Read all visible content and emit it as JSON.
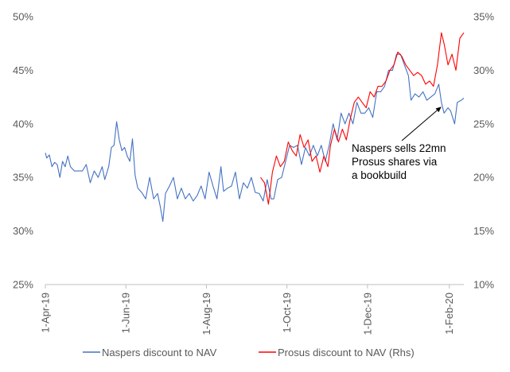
{
  "chart_data": {
    "type": "line",
    "title": "",
    "xlabel": "",
    "ylabel": "",
    "x_ticks": [
      "1-Apr-19",
      "1-Jun-19",
      "1-Aug-19",
      "1-Oct-19",
      "1-Dec-19",
      "1-Feb-20"
    ],
    "x_range": [
      "2019-04-01",
      "2020-02-12"
    ],
    "y_left": {
      "range": [
        25,
        50
      ],
      "ticks": [
        "25%",
        "30%",
        "35%",
        "40%",
        "45%",
        "50%"
      ]
    },
    "y_right": {
      "range": [
        10,
        35
      ],
      "ticks": [
        "10%",
        "15%",
        "20%",
        "25%",
        "30%",
        "35%"
      ]
    },
    "grid": false,
    "legend": {
      "placement": "bottom"
    },
    "series": [
      {
        "name": "Naspers discount to NAV",
        "color": "#4472C4",
        "axis": "left",
        "points": [
          [
            "2019-04-01",
            37.3
          ],
          [
            "2019-04-02",
            36.8
          ],
          [
            "2019-04-04",
            37.1
          ],
          [
            "2019-04-06",
            36.0
          ],
          [
            "2019-04-08",
            36.4
          ],
          [
            "2019-04-10",
            36.2
          ],
          [
            "2019-04-12",
            35.0
          ],
          [
            "2019-04-14",
            36.5
          ],
          [
            "2019-04-16",
            36.0
          ],
          [
            "2019-04-18",
            37.0
          ],
          [
            "2019-04-20",
            36.0
          ],
          [
            "2019-04-23",
            35.6
          ],
          [
            "2019-04-26",
            35.6
          ],
          [
            "2019-04-29",
            35.6
          ],
          [
            "2019-05-02",
            36.2
          ],
          [
            "2019-05-05",
            34.5
          ],
          [
            "2019-05-08",
            35.6
          ],
          [
            "2019-05-11",
            35.0
          ],
          [
            "2019-05-14",
            36.0
          ],
          [
            "2019-05-16",
            34.8
          ],
          [
            "2019-05-19",
            36.0
          ],
          [
            "2019-05-21",
            37.8
          ],
          [
            "2019-05-23",
            38.0
          ],
          [
            "2019-05-25",
            40.2
          ],
          [
            "2019-05-27",
            38.5
          ],
          [
            "2019-05-29",
            37.5
          ],
          [
            "2019-05-31",
            37.8
          ],
          [
            "2019-06-02",
            37.0
          ],
          [
            "2019-06-04",
            36.5
          ],
          [
            "2019-06-06",
            38.6
          ],
          [
            "2019-06-08",
            35.2
          ],
          [
            "2019-06-10",
            34.0
          ],
          [
            "2019-06-13",
            33.6
          ],
          [
            "2019-06-16",
            33.0
          ],
          [
            "2019-06-19",
            35.0
          ],
          [
            "2019-06-22",
            33.0
          ],
          [
            "2019-06-25",
            33.5
          ],
          [
            "2019-06-27",
            32.3
          ],
          [
            "2019-06-29",
            30.9
          ],
          [
            "2019-07-01",
            33.5
          ],
          [
            "2019-07-04",
            34.2
          ],
          [
            "2019-07-07",
            35.0
          ],
          [
            "2019-07-10",
            33.0
          ],
          [
            "2019-07-13",
            34.0
          ],
          [
            "2019-07-16",
            33.0
          ],
          [
            "2019-07-19",
            33.5
          ],
          [
            "2019-07-22",
            32.8
          ],
          [
            "2019-07-25",
            33.3
          ],
          [
            "2019-07-28",
            34.2
          ],
          [
            "2019-07-31",
            33.0
          ],
          [
            "2019-08-03",
            35.5
          ],
          [
            "2019-08-06",
            34.2
          ],
          [
            "2019-08-09",
            33.0
          ],
          [
            "2019-08-12",
            36.0
          ],
          [
            "2019-08-14",
            33.7
          ],
          [
            "2019-08-17",
            34.0
          ],
          [
            "2019-08-20",
            34.2
          ],
          [
            "2019-08-23",
            35.5
          ],
          [
            "2019-08-26",
            33.0
          ],
          [
            "2019-08-29",
            34.5
          ],
          [
            "2019-09-01",
            34.0
          ],
          [
            "2019-09-04",
            35.0
          ],
          [
            "2019-09-07",
            33.6
          ],
          [
            "2019-09-10",
            33.5
          ],
          [
            "2019-09-13",
            32.8
          ],
          [
            "2019-09-16",
            34.8
          ],
          [
            "2019-09-19",
            33.0
          ],
          [
            "2019-09-21",
            33.0
          ],
          [
            "2019-09-24",
            34.8
          ],
          [
            "2019-09-27",
            35.0
          ],
          [
            "2019-09-30",
            36.5
          ],
          [
            "2019-10-03",
            38.0
          ],
          [
            "2019-10-06",
            37.8
          ],
          [
            "2019-10-09",
            38.0
          ],
          [
            "2019-10-12",
            36.2
          ],
          [
            "2019-10-15",
            37.8
          ],
          [
            "2019-10-18",
            37.0
          ],
          [
            "2019-10-21",
            38.0
          ],
          [
            "2019-10-24",
            37.0
          ],
          [
            "2019-10-27",
            38.0
          ],
          [
            "2019-10-30",
            36.5
          ],
          [
            "2019-11-02",
            38.0
          ],
          [
            "2019-11-05",
            40.0
          ],
          [
            "2019-11-08",
            38.5
          ],
          [
            "2019-11-11",
            41.0
          ],
          [
            "2019-11-14",
            40.0
          ],
          [
            "2019-11-17",
            41.0
          ],
          [
            "2019-11-20",
            40.0
          ],
          [
            "2019-11-23",
            42.0
          ],
          [
            "2019-11-26",
            41.0
          ],
          [
            "2019-11-29",
            41.0
          ],
          [
            "2019-12-02",
            41.5
          ],
          [
            "2019-12-05",
            40.6
          ],
          [
            "2019-12-08",
            43.0
          ],
          [
            "2019-12-11",
            43.0
          ],
          [
            "2019-12-14",
            43.5
          ],
          [
            "2019-12-17",
            45.0
          ],
          [
            "2019-12-20",
            45.0
          ],
          [
            "2019-12-23",
            46.5
          ],
          [
            "2019-12-26",
            46.5
          ],
          [
            "2019-12-29",
            45.5
          ],
          [
            "2020-01-01",
            44.5
          ],
          [
            "2020-01-03",
            42.2
          ],
          [
            "2020-01-06",
            42.8
          ],
          [
            "2020-01-09",
            42.5
          ],
          [
            "2020-01-12",
            43.0
          ],
          [
            "2020-01-15",
            42.2
          ],
          [
            "2020-01-18",
            42.5
          ],
          [
            "2020-01-21",
            42.8
          ],
          [
            "2020-01-24",
            43.7
          ],
          [
            "2020-01-26",
            42.0
          ],
          [
            "2020-01-28",
            41.0
          ],
          [
            "2020-01-31",
            41.5
          ],
          [
            "2020-02-02",
            41.2
          ],
          [
            "2020-02-05",
            40.0
          ],
          [
            "2020-02-07",
            42.0
          ],
          [
            "2020-02-10",
            42.2
          ],
          [
            "2020-02-12",
            42.4
          ]
        ]
      },
      {
        "name": "Prosus discount to NAV (Rhs)",
        "color": "#FF0000",
        "axis": "right",
        "points": [
          [
            "2019-09-11",
            20.0
          ],
          [
            "2019-09-14",
            19.5
          ],
          [
            "2019-09-17",
            17.5
          ],
          [
            "2019-09-20",
            20.5
          ],
          [
            "2019-09-23",
            22.0
          ],
          [
            "2019-09-26",
            21.0
          ],
          [
            "2019-09-29",
            21.5
          ],
          [
            "2019-10-02",
            23.3
          ],
          [
            "2019-10-05",
            22.5
          ],
          [
            "2019-10-08",
            22.0
          ],
          [
            "2019-10-11",
            24.0
          ],
          [
            "2019-10-14",
            22.8
          ],
          [
            "2019-10-17",
            23.5
          ],
          [
            "2019-10-20",
            21.5
          ],
          [
            "2019-10-23",
            22.0
          ],
          [
            "2019-10-26",
            20.5
          ],
          [
            "2019-10-29",
            22.0
          ],
          [
            "2019-11-01",
            21.0
          ],
          [
            "2019-11-03",
            23.0
          ],
          [
            "2019-11-06",
            24.5
          ],
          [
            "2019-11-09",
            23.3
          ],
          [
            "2019-11-12",
            24.5
          ],
          [
            "2019-11-15",
            23.5
          ],
          [
            "2019-11-18",
            25.5
          ],
          [
            "2019-11-21",
            27.0
          ],
          [
            "2019-11-24",
            27.5
          ],
          [
            "2019-11-27",
            27.0
          ],
          [
            "2019-11-30",
            26.5
          ],
          [
            "2019-12-03",
            28.0
          ],
          [
            "2019-12-06",
            27.5
          ],
          [
            "2019-12-09",
            28.5
          ],
          [
            "2019-12-12",
            28.5
          ],
          [
            "2019-12-15",
            29.0
          ],
          [
            "2019-12-18",
            30.0
          ],
          [
            "2019-12-21",
            30.5
          ],
          [
            "2019-12-24",
            31.7
          ],
          [
            "2019-12-27",
            31.3
          ],
          [
            "2019-12-30",
            30.5
          ],
          [
            "2020-01-02",
            30.0
          ],
          [
            "2020-01-05",
            29.5
          ],
          [
            "2020-01-08",
            29.8
          ],
          [
            "2020-01-11",
            29.5
          ],
          [
            "2020-01-14",
            28.7
          ],
          [
            "2020-01-17",
            29.0
          ],
          [
            "2020-01-20",
            28.5
          ],
          [
            "2020-01-23",
            30.5
          ],
          [
            "2020-01-26",
            33.5
          ],
          [
            "2020-01-28",
            32.5
          ],
          [
            "2020-01-31",
            30.5
          ],
          [
            "2020-02-03",
            31.5
          ],
          [
            "2020-02-06",
            30.0
          ],
          [
            "2020-02-09",
            33.0
          ],
          [
            "2020-02-12",
            33.5
          ]
        ]
      }
    ],
    "annotations": [
      {
        "lines": [
          "Naspers sells 22mn",
          "Prosus shares via",
          "a bookbuild"
        ],
        "points_to": [
          "2020-01-26",
          41.6
        ]
      }
    ]
  }
}
